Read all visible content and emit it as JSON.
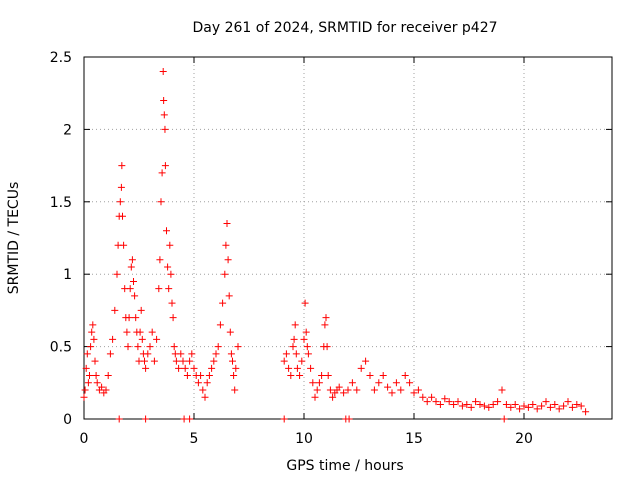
{
  "chart_data": {
    "type": "scatter",
    "title": "Day 261 of 2024, SRMTID for receiver p427",
    "xlabel": "GPS time / hours",
    "ylabel": "SRMTID / TECUs",
    "xlim": [
      0,
      24
    ],
    "ylim": [
      0,
      2.5
    ],
    "xticks": [
      0,
      5,
      10,
      15,
      20
    ],
    "xtick_labels": [
      "0",
      "5",
      "10",
      "15",
      "20"
    ],
    "yticks": [
      0,
      0.5,
      1,
      1.5,
      2,
      2.5
    ],
    "ytick_labels": [
      "0",
      "0.5",
      "1",
      "1.5",
      "2",
      "2.5"
    ],
    "grid": true,
    "marker": "+",
    "color": "#ff0000",
    "series": [
      {
        "name": "SRMTID",
        "points": [
          [
            0.0,
            0.15
          ],
          [
            0.05,
            0.2
          ],
          [
            0.1,
            0.35
          ],
          [
            0.15,
            0.45
          ],
          [
            0.2,
            0.25
          ],
          [
            0.25,
            0.3
          ],
          [
            0.3,
            0.5
          ],
          [
            0.35,
            0.6
          ],
          [
            0.4,
            0.65
          ],
          [
            0.45,
            0.55
          ],
          [
            0.5,
            0.4
          ],
          [
            0.55,
            0.3
          ],
          [
            0.6,
            0.25
          ],
          [
            0.7,
            0.2
          ],
          [
            0.8,
            0.22
          ],
          [
            0.9,
            0.18
          ],
          [
            1.0,
            0.2
          ],
          [
            1.1,
            0.3
          ],
          [
            1.2,
            0.45
          ],
          [
            1.3,
            0.55
          ],
          [
            1.4,
            0.75
          ],
          [
            1.5,
            1.0
          ],
          [
            1.55,
            1.2
          ],
          [
            1.6,
            1.4
          ],
          [
            1.65,
            1.5
          ],
          [
            1.7,
            1.6
          ],
          [
            1.72,
            1.75
          ],
          [
            1.75,
            1.4
          ],
          [
            1.8,
            1.2
          ],
          [
            1.85,
            0.9
          ],
          [
            1.9,
            0.7
          ],
          [
            1.95,
            0.6
          ],
          [
            2.0,
            0.5
          ],
          [
            2.05,
            0.7
          ],
          [
            2.1,
            0.9
          ],
          [
            2.15,
            1.05
          ],
          [
            2.2,
            1.1
          ],
          [
            2.25,
            0.95
          ],
          [
            2.3,
            0.85
          ],
          [
            2.35,
            0.7
          ],
          [
            2.4,
            0.6
          ],
          [
            2.45,
            0.5
          ],
          [
            2.5,
            0.4
          ],
          [
            2.55,
            0.6
          ],
          [
            2.6,
            0.75
          ],
          [
            2.65,
            0.55
          ],
          [
            2.7,
            0.45
          ],
          [
            2.75,
            0.4
          ],
          [
            2.8,
            0.35
          ],
          [
            2.9,
            0.45
          ],
          [
            3.0,
            0.5
          ],
          [
            3.1,
            0.6
          ],
          [
            3.2,
            0.4
          ],
          [
            3.3,
            0.55
          ],
          [
            3.4,
            0.9
          ],
          [
            3.45,
            1.1
          ],
          [
            3.5,
            1.5
          ],
          [
            3.55,
            1.7
          ],
          [
            3.6,
            2.4
          ],
          [
            3.62,
            2.2
          ],
          [
            3.65,
            2.1
          ],
          [
            3.68,
            2.0
          ],
          [
            3.7,
            1.75
          ],
          [
            3.75,
            1.3
          ],
          [
            3.8,
            1.05
          ],
          [
            3.85,
            0.9
          ],
          [
            3.9,
            1.2
          ],
          [
            3.95,
            1.0
          ],
          [
            4.0,
            0.8
          ],
          [
            4.05,
            0.7
          ],
          [
            4.1,
            0.5
          ],
          [
            4.15,
            0.45
          ],
          [
            4.2,
            0.4
          ],
          [
            4.3,
            0.35
          ],
          [
            4.4,
            0.45
          ],
          [
            4.5,
            0.4
          ],
          [
            4.6,
            0.35
          ],
          [
            4.7,
            0.3
          ],
          [
            4.8,
            0.4
          ],
          [
            4.9,
            0.45
          ],
          [
            5.0,
            0.35
          ],
          [
            5.1,
            0.3
          ],
          [
            5.2,
            0.25
          ],
          [
            5.3,
            0.3
          ],
          [
            5.4,
            0.2
          ],
          [
            5.5,
            0.15
          ],
          [
            5.6,
            0.25
          ],
          [
            5.7,
            0.3
          ],
          [
            5.8,
            0.35
          ],
          [
            5.9,
            0.4
          ],
          [
            6.0,
            0.45
          ],
          [
            6.1,
            0.5
          ],
          [
            6.2,
            0.65
          ],
          [
            6.3,
            0.8
          ],
          [
            6.4,
            1.0
          ],
          [
            6.45,
            1.2
          ],
          [
            6.5,
            1.35
          ],
          [
            6.55,
            1.1
          ],
          [
            6.6,
            0.85
          ],
          [
            6.65,
            0.6
          ],
          [
            6.7,
            0.45
          ],
          [
            6.75,
            0.4
          ],
          [
            6.8,
            0.3
          ],
          [
            6.85,
            0.2
          ],
          [
            6.9,
            0.35
          ],
          [
            7.0,
            0.5
          ],
          [
            9.1,
            0.4
          ],
          [
            9.2,
            0.45
          ],
          [
            9.3,
            0.35
          ],
          [
            9.4,
            0.3
          ],
          [
            9.5,
            0.5
          ],
          [
            9.55,
            0.55
          ],
          [
            9.6,
            0.65
          ],
          [
            9.65,
            0.45
          ],
          [
            9.7,
            0.35
          ],
          [
            9.8,
            0.3
          ],
          [
            9.9,
            0.4
          ],
          [
            10.0,
            0.55
          ],
          [
            10.05,
            0.8
          ],
          [
            10.1,
            0.6
          ],
          [
            10.15,
            0.5
          ],
          [
            10.2,
            0.45
          ],
          [
            10.3,
            0.35
          ],
          [
            10.4,
            0.25
          ],
          [
            10.5,
            0.15
          ],
          [
            10.6,
            0.2
          ],
          [
            10.7,
            0.25
          ],
          [
            10.8,
            0.3
          ],
          [
            10.9,
            0.5
          ],
          [
            10.95,
            0.65
          ],
          [
            11.0,
            0.7
          ],
          [
            11.05,
            0.5
          ],
          [
            11.1,
            0.3
          ],
          [
            11.2,
            0.2
          ],
          [
            11.3,
            0.15
          ],
          [
            11.4,
            0.18
          ],
          [
            11.5,
            0.2
          ],
          [
            11.6,
            0.22
          ],
          [
            11.8,
            0.18
          ],
          [
            12.0,
            0.2
          ],
          [
            12.2,
            0.25
          ],
          [
            12.4,
            0.2
          ],
          [
            12.6,
            0.35
          ],
          [
            12.8,
            0.4
          ],
          [
            13.0,
            0.3
          ],
          [
            13.2,
            0.2
          ],
          [
            13.4,
            0.25
          ],
          [
            13.6,
            0.3
          ],
          [
            13.8,
            0.22
          ],
          [
            14.0,
            0.18
          ],
          [
            14.2,
            0.25
          ],
          [
            14.4,
            0.2
          ],
          [
            14.6,
            0.3
          ],
          [
            14.8,
            0.25
          ],
          [
            15.0,
            0.18
          ],
          [
            15.2,
            0.2
          ],
          [
            15.4,
            0.15
          ],
          [
            15.6,
            0.12
          ],
          [
            15.8,
            0.15
          ],
          [
            16.0,
            0.12
          ],
          [
            16.2,
            0.1
          ],
          [
            16.4,
            0.14
          ],
          [
            16.6,
            0.12
          ],
          [
            16.8,
            0.1
          ],
          [
            17.0,
            0.12
          ],
          [
            17.2,
            0.09
          ],
          [
            17.4,
            0.1
          ],
          [
            17.6,
            0.08
          ],
          [
            17.8,
            0.12
          ],
          [
            18.0,
            0.1
          ],
          [
            18.2,
            0.09
          ],
          [
            18.4,
            0.08
          ],
          [
            18.6,
            0.1
          ],
          [
            18.8,
            0.12
          ],
          [
            19.0,
            0.2
          ],
          [
            19.2,
            0.1
          ],
          [
            19.4,
            0.08
          ],
          [
            19.6,
            0.1
          ],
          [
            19.8,
            0.07
          ],
          [
            20.0,
            0.09
          ],
          [
            20.2,
            0.08
          ],
          [
            20.4,
            0.1
          ],
          [
            20.6,
            0.07
          ],
          [
            20.8,
            0.09
          ],
          [
            21.0,
            0.12
          ],
          [
            21.2,
            0.08
          ],
          [
            21.4,
            0.1
          ],
          [
            21.6,
            0.07
          ],
          [
            21.8,
            0.09
          ],
          [
            22.0,
            0.12
          ],
          [
            22.2,
            0.08
          ],
          [
            22.4,
            0.1
          ],
          [
            22.6,
            0.09
          ],
          [
            22.8,
            0.05
          ],
          [
            1.6,
            0.0
          ],
          [
            2.8,
            0.0
          ],
          [
            4.55,
            0.0
          ],
          [
            4.8,
            0.0
          ],
          [
            9.1,
            0.0
          ],
          [
            11.9,
            0.0
          ],
          [
            12.05,
            0.0
          ],
          [
            19.1,
            0.0
          ]
        ]
      }
    ]
  }
}
